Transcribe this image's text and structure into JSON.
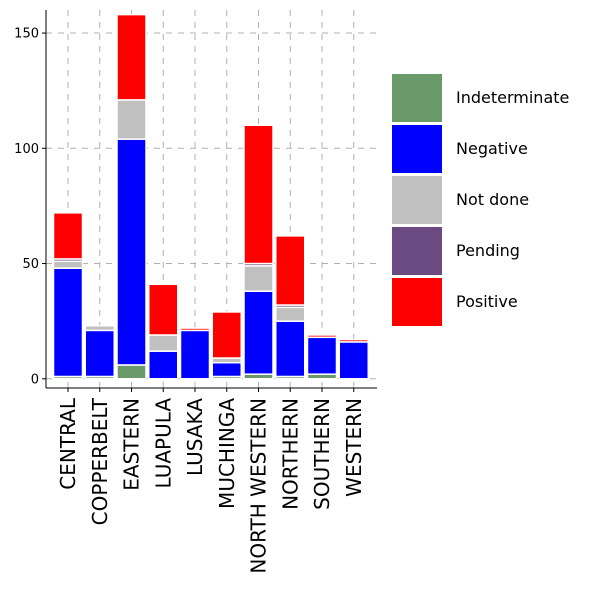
{
  "chart_data": {
    "type": "bar",
    "stacked": true,
    "categories": [
      "CENTRAL",
      "COPPERBELT",
      "EASTERN",
      "LUAPULA",
      "LUSAKA",
      "MUCHINGA",
      "NORTH WESTERN",
      "NORTHERN",
      "SOUTHERN",
      "WESTERN"
    ],
    "series": [
      {
        "name": "Indeterminate",
        "color": "#6a9a6a",
        "values": [
          1,
          1,
          6,
          0,
          0,
          1,
          2,
          1,
          2,
          0
        ]
      },
      {
        "name": "Negative",
        "color": "#0000ff",
        "values": [
          47,
          20,
          98,
          12,
          21,
          6,
          36,
          24,
          16,
          16
        ]
      },
      {
        "name": "Not done",
        "color": "#c0c0c0",
        "values": [
          3,
          2,
          17,
          7,
          0,
          2,
          11,
          6,
          0,
          0
        ]
      },
      {
        "name": "Pending",
        "color": "#6a4a80",
        "values": [
          1,
          0,
          0,
          0,
          0,
          0,
          1,
          1,
          0,
          0
        ]
      },
      {
        "name": "Positive",
        "color": "#ff0000",
        "values": [
          20,
          0,
          37,
          22,
          1,
          20,
          60,
          30,
          1,
          1
        ]
      }
    ],
    "yticks": [
      0,
      50,
      100,
      150
    ],
    "ylim": [
      -4,
      160
    ],
    "grid": true,
    "legend_position": "right",
    "title": "",
    "xlabel": "",
    "ylabel": ""
  }
}
